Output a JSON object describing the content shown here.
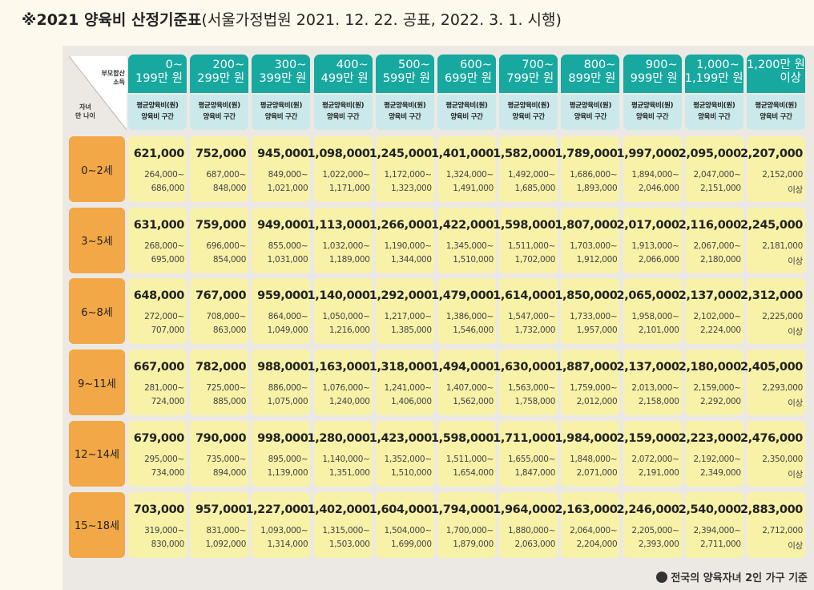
{
  "title": {
    "bold": "※2021 양육비 산정기준표",
    "normal": "(서울가정법원 2021. 12. 22. 공표, 2022. 3. 1. 시행)"
  },
  "corner": {
    "top_right": [
      "부모합산",
      "소득"
    ],
    "bottom_left": [
      "자녀",
      "만 나이"
    ]
  },
  "columns": [
    {
      "line1": "0~",
      "line2": "199만 원"
    },
    {
      "line1": "200~",
      "line2": "299만 원"
    },
    {
      "line1": "300~",
      "line2": "399만 원"
    },
    {
      "line1": "400~",
      "line2": "499만 원"
    },
    {
      "line1": "500~",
      "line2": "599만 원"
    },
    {
      "line1": "600~",
      "line2": "699만 원"
    },
    {
      "line1": "700~",
      "line2": "799만 원"
    },
    {
      "line1": "800~",
      "line2": "899만 원"
    },
    {
      "line1": "900~",
      "line2": "999만 원"
    },
    {
      "line1": "1,000~",
      "line2": "1,199만 원"
    },
    {
      "line1": "1,200만 원",
      "line2": "이상"
    }
  ],
  "column_sub": [
    "평균양육비(원)",
    "양육비 구간"
  ],
  "rows": [
    {
      "age": "0~2세",
      "cells": [
        [
          "621,000",
          "264,000~",
          "686,000"
        ],
        [
          "752,000",
          "687,000~",
          "848,000"
        ],
        [
          "945,000",
          "849,000~",
          "1,021,000"
        ],
        [
          "1,098,000",
          "1,022,000~",
          "1,171,000"
        ],
        [
          "1,245,000",
          "1,172,000~",
          "1,323,000"
        ],
        [
          "1,401,000",
          "1,324,000~",
          "1,491,000"
        ],
        [
          "1,582,000",
          "1,492,000~",
          "1,685,000"
        ],
        [
          "1,789,000",
          "1,686,000~",
          "1,893,000"
        ],
        [
          "1,997,000",
          "1,894,000~",
          "2,046,000"
        ],
        [
          "2,095,000",
          "2,047,000~",
          "2,151,000"
        ],
        [
          "2,207,000",
          "2,152,000",
          "이상"
        ]
      ]
    },
    {
      "age": "3~5세",
      "cells": [
        [
          "631,000",
          "268,000~",
          "695,000"
        ],
        [
          "759,000",
          "696,000~",
          "854,000"
        ],
        [
          "949,000",
          "855,000~",
          "1,031,000"
        ],
        [
          "1,113,000",
          "1,032,000~",
          "1,189,000"
        ],
        [
          "1,266,000",
          "1,190,000~",
          "1,344,000"
        ],
        [
          "1,422,000",
          "1,345,000~",
          "1,510,000"
        ],
        [
          "1,598,000",
          "1,511,000~",
          "1,702,000"
        ],
        [
          "1,807,000",
          "1,703,000~",
          "1,912,000"
        ],
        [
          "2,017,000",
          "1,913,000~",
          "2,066,000"
        ],
        [
          "2,116,000",
          "2,067,000~",
          "2,180,000"
        ],
        [
          "2,245,000",
          "2,181,000",
          "이상"
        ]
      ]
    },
    {
      "age": "6~8세",
      "cells": [
        [
          "648,000",
          "272,000~",
          "707,000"
        ],
        [
          "767,000",
          "708,000~",
          "863,000"
        ],
        [
          "959,000",
          "864,000~",
          "1,049,000"
        ],
        [
          "1,140,000",
          "1,050,000~",
          "1,216,000"
        ],
        [
          "1,292,000",
          "1,217,000~",
          "1,385,000"
        ],
        [
          "1,479,000",
          "1,386,000~",
          "1,546,000"
        ],
        [
          "1,614,000",
          "1,547,000~",
          "1,732,000"
        ],
        [
          "1,850,000",
          "1,733,000~",
          "1,957,000"
        ],
        [
          "2,065,000",
          "1,958,000~",
          "2,101,000"
        ],
        [
          "2,137,000",
          "2,102,000~",
          "2,224,000"
        ],
        [
          "2,312,000",
          "2,225,000",
          "이상"
        ]
      ]
    },
    {
      "age": "9~11세",
      "cells": [
        [
          "667,000",
          "281,000~",
          "724,000"
        ],
        [
          "782,000",
          "725,000~",
          "885,000"
        ],
        [
          "988,000",
          "886,000~",
          "1,075,000"
        ],
        [
          "1,163,000",
          "1,076,000~",
          "1,240,000"
        ],
        [
          "1,318,000",
          "1,241,000~",
          "1,406,000"
        ],
        [
          "1,494,000",
          "1,407,000~",
          "1,562,000"
        ],
        [
          "1,630,000",
          "1,563,000~",
          "1,758,000"
        ],
        [
          "1,887,000",
          "1,759,000~",
          "2,012,000"
        ],
        [
          "2,137,000",
          "2,013,000~",
          "2,158,000"
        ],
        [
          "2,180,000",
          "2,159,000~",
          "2,292,000"
        ],
        [
          "2,405,000",
          "2,293,000",
          "이상"
        ]
      ]
    },
    {
      "age": "12~14세",
      "cells": [
        [
          "679,000",
          "295,000~",
          "734,000"
        ],
        [
          "790,000",
          "735,000~",
          "894,000"
        ],
        [
          "998,000",
          "895,000~",
          "1,139,000"
        ],
        [
          "1,280,000",
          "1,140,000~",
          "1,351,000"
        ],
        [
          "1,423,000",
          "1,352,000~",
          "1,510,000"
        ],
        [
          "1,598,000",
          "1,511,000~",
          "1,654,000"
        ],
        [
          "1,711,000",
          "1,655,000~",
          "1,847,000"
        ],
        [
          "1,984,000",
          "1,848,000~",
          "2,071,000"
        ],
        [
          "2,159,000",
          "2,072,000~",
          "2,191,000"
        ],
        [
          "2,223,000",
          "2,192,000~",
          "2,349,000"
        ],
        [
          "2,476,000",
          "2,350,000",
          "이상"
        ]
      ]
    },
    {
      "age": "15~18세",
      "cells": [
        [
          "703,000",
          "319,000~",
          "830,000"
        ],
        [
          "957,000",
          "831,000~",
          "1,092,000"
        ],
        [
          "1,227,000",
          "1,093,000~",
          "1,314,000"
        ],
        [
          "1,402,000",
          "1,315,000~",
          "1,503,000"
        ],
        [
          "1,604,000",
          "1,504,000~",
          "1,699,000"
        ],
        [
          "1,794,000",
          "1,700,000~",
          "1,879,000"
        ],
        [
          "1,964,000",
          "1,880,000~",
          "2,063,000"
        ],
        [
          "2,163,000",
          "2,064,000~",
          "2,204,000"
        ],
        [
          "2,246,000",
          "2,205,000~",
          "2,393,000"
        ],
        [
          "2,540,000",
          "2,394,000~",
          "2,711,000"
        ],
        [
          "2,883,000",
          "2,712,000",
          "이상"
        ]
      ]
    }
  ],
  "footnote": "전국의 양육자녀 2인 가구 기준",
  "colors": {
    "header_teal": "#17a8a0",
    "header_sub": "#cbe9ea",
    "row_orange": "#f2a846",
    "cell_yellow": "#f8f2a8",
    "panel_gray": "#ece9e4"
  }
}
